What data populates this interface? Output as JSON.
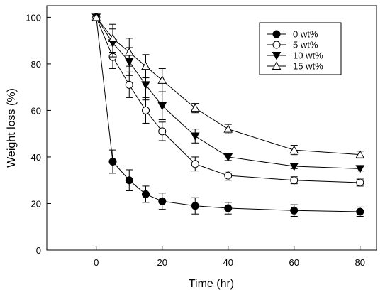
{
  "chart_data": {
    "type": "line",
    "xlabel": "Time (hr)",
    "ylabel": "Weight loss (%)",
    "xlim": [
      -15,
      85
    ],
    "ylim": [
      0,
      105
    ],
    "xticks": [
      0,
      20,
      40,
      60,
      80
    ],
    "yticks": [
      0,
      20,
      40,
      60,
      80,
      100
    ],
    "x": [
      0,
      5,
      10,
      15,
      20,
      30,
      40,
      60,
      80
    ],
    "legend_position": "top-right",
    "series": [
      {
        "name": "0 wt%",
        "marker": "filled-circle",
        "values": [
          100,
          38,
          30,
          24,
          21,
          19,
          18,
          17,
          16.5
        ],
        "errors": [
          0,
          5,
          4.5,
          3.5,
          3.5,
          3.5,
          2.5,
          2.5,
          2
        ]
      },
      {
        "name": "5 wt%",
        "marker": "open-circle",
        "values": [
          100,
          83,
          71,
          60,
          51,
          37,
          32,
          30,
          29
        ],
        "errors": [
          0,
          5,
          5.5,
          5.5,
          4,
          3,
          2,
          1.5,
          1.5
        ]
      },
      {
        "name": "10 wt%",
        "marker": "filled-triangle-down",
        "values": [
          100,
          89,
          81,
          71,
          62,
          49,
          40,
          36,
          35
        ],
        "errors": [
          0,
          6,
          6,
          6.5,
          6,
          3,
          1.5,
          1,
          1
        ]
      },
      {
        "name": "15 wt%",
        "marker": "open-triangle-up",
        "values": [
          100,
          91,
          85,
          79,
          73,
          61,
          52,
          43,
          41
        ],
        "errors": [
          0,
          6,
          6,
          5,
          5,
          2,
          2,
          2,
          1.5
        ]
      }
    ]
  }
}
